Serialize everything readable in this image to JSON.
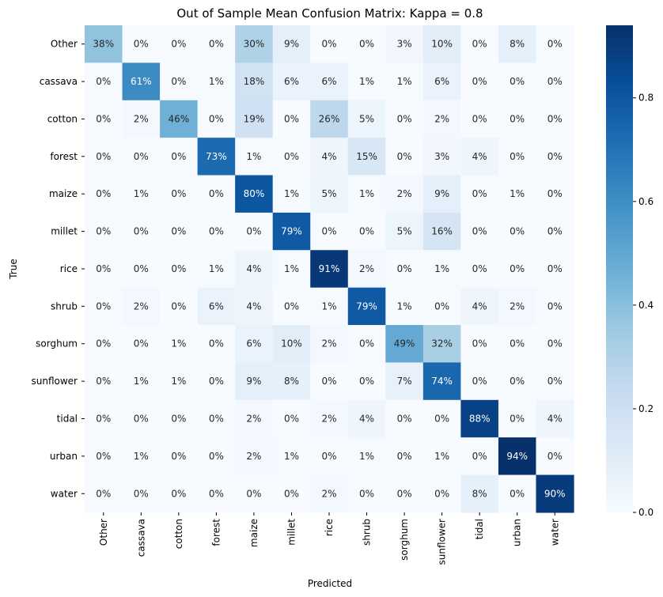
{
  "chart_data": {
    "type": "heatmap",
    "title": "Out of Sample Mean Confusion Matrix: Kappa = 0.8",
    "xlabel": "Predicted",
    "ylabel": "True",
    "x_categories": [
      "Other",
      "cassava",
      "cotton",
      "forest",
      "maize",
      "millet",
      "rice",
      "shrub",
      "sorghum",
      "sunflower",
      "tidal",
      "urban",
      "water"
    ],
    "y_categories": [
      "Other",
      "cassava",
      "cotton",
      "forest",
      "maize",
      "millet",
      "rice",
      "shrub",
      "sorghum",
      "sunflower",
      "tidal",
      "urban",
      "water"
    ],
    "values": [
      [
        0.38,
        0.0,
        0.0,
        0.0,
        0.3,
        0.09,
        0.0,
        0.0,
        0.03,
        0.1,
        0.0,
        0.08,
        0.0
      ],
      [
        0.0,
        0.61,
        0.0,
        0.01,
        0.18,
        0.06,
        0.06,
        0.01,
        0.01,
        0.06,
        0.0,
        0.0,
        0.0
      ],
      [
        0.0,
        0.02,
        0.46,
        0.0,
        0.19,
        0.0,
        0.26,
        0.05,
        0.0,
        0.02,
        0.0,
        0.0,
        0.0
      ],
      [
        0.0,
        0.0,
        0.0,
        0.73,
        0.01,
        0.0,
        0.04,
        0.15,
        0.0,
        0.03,
        0.04,
        0.0,
        0.0
      ],
      [
        0.0,
        0.01,
        0.0,
        0.0,
        0.8,
        0.01,
        0.05,
        0.01,
        0.02,
        0.09,
        0.0,
        0.01,
        0.0
      ],
      [
        0.0,
        0.0,
        0.0,
        0.0,
        0.0,
        0.79,
        0.0,
        0.0,
        0.05,
        0.16,
        0.0,
        0.0,
        0.0
      ],
      [
        0.0,
        0.0,
        0.0,
        0.01,
        0.04,
        0.01,
        0.91,
        0.02,
        0.0,
        0.01,
        0.0,
        0.0,
        0.0
      ],
      [
        0.0,
        0.02,
        0.0,
        0.06,
        0.04,
        0.0,
        0.01,
        0.79,
        0.01,
        0.0,
        0.04,
        0.02,
        0.0
      ],
      [
        0.0,
        0.0,
        0.01,
        0.0,
        0.06,
        0.1,
        0.02,
        0.0,
        0.49,
        0.32,
        0.0,
        0.0,
        0.0
      ],
      [
        0.0,
        0.01,
        0.01,
        0.0,
        0.09,
        0.08,
        0.0,
        0.0,
        0.07,
        0.74,
        0.0,
        0.0,
        0.0
      ],
      [
        0.0,
        0.0,
        0.0,
        0.0,
        0.02,
        0.0,
        0.02,
        0.04,
        0.0,
        0.0,
        0.88,
        0.0,
        0.04
      ],
      [
        0.0,
        0.01,
        0.0,
        0.0,
        0.02,
        0.01,
        0.0,
        0.01,
        0.0,
        0.01,
        0.0,
        0.94,
        0.0
      ],
      [
        0.0,
        0.0,
        0.0,
        0.0,
        0.0,
        0.0,
        0.02,
        0.0,
        0.0,
        0.0,
        0.08,
        0.0,
        0.9
      ]
    ],
    "value_format": "percent",
    "colormap": "Blues",
    "colorbar": {
      "ticks": [
        0.0,
        0.2,
        0.4,
        0.6,
        0.8
      ],
      "tick_labels": [
        "0.0",
        "0.2",
        "0.4",
        "0.6",
        "0.8"
      ],
      "range": [
        0.0,
        0.94
      ]
    },
    "grid": false,
    "legend": "colorbar-right"
  }
}
